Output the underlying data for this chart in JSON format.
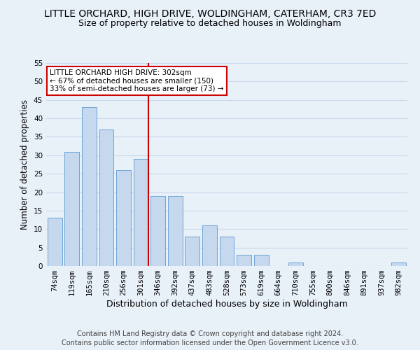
{
  "title": "LITTLE ORCHARD, HIGH DRIVE, WOLDINGHAM, CATERHAM, CR3 7ED",
  "subtitle": "Size of property relative to detached houses in Woldingham",
  "xlabel": "Distribution of detached houses by size in Woldingham",
  "ylabel": "Number of detached properties",
  "categories": [
    "74sqm",
    "119sqm",
    "165sqm",
    "210sqm",
    "256sqm",
    "301sqm",
    "346sqm",
    "392sqm",
    "437sqm",
    "483sqm",
    "528sqm",
    "573sqm",
    "619sqm",
    "664sqm",
    "710sqm",
    "755sqm",
    "800sqm",
    "846sqm",
    "891sqm",
    "937sqm",
    "982sqm"
  ],
  "values": [
    13,
    31,
    43,
    37,
    26,
    29,
    19,
    19,
    8,
    11,
    8,
    3,
    3,
    0,
    1,
    0,
    0,
    0,
    0,
    0,
    1
  ],
  "bar_color": "#c5d8ed",
  "bar_edgecolor": "#5b9bd5",
  "grid_color": "#c8d8e8",
  "background_color": "#e8f0f8",
  "vline_x_index": 5,
  "vline_color": "#cc0000",
  "ylim": [
    0,
    55
  ],
  "yticks": [
    0,
    5,
    10,
    15,
    20,
    25,
    30,
    35,
    40,
    45,
    50,
    55
  ],
  "annotation_title": "LITTLE ORCHARD HIGH DRIVE: 302sqm",
  "annotation_line1": "← 67% of detached houses are smaller (150)",
  "annotation_line2": "33% of semi-detached houses are larger (73) →",
  "annotation_box_color": "#ffffff",
  "annotation_box_edgecolor": "#cc0000",
  "footer1": "Contains HM Land Registry data © Crown copyright and database right 2024.",
  "footer2": "Contains public sector information licensed under the Open Government Licence v3.0.",
  "title_fontsize": 10,
  "subtitle_fontsize": 9,
  "xlabel_fontsize": 9,
  "ylabel_fontsize": 8.5,
  "tick_fontsize": 7.5,
  "footer_fontsize": 7
}
